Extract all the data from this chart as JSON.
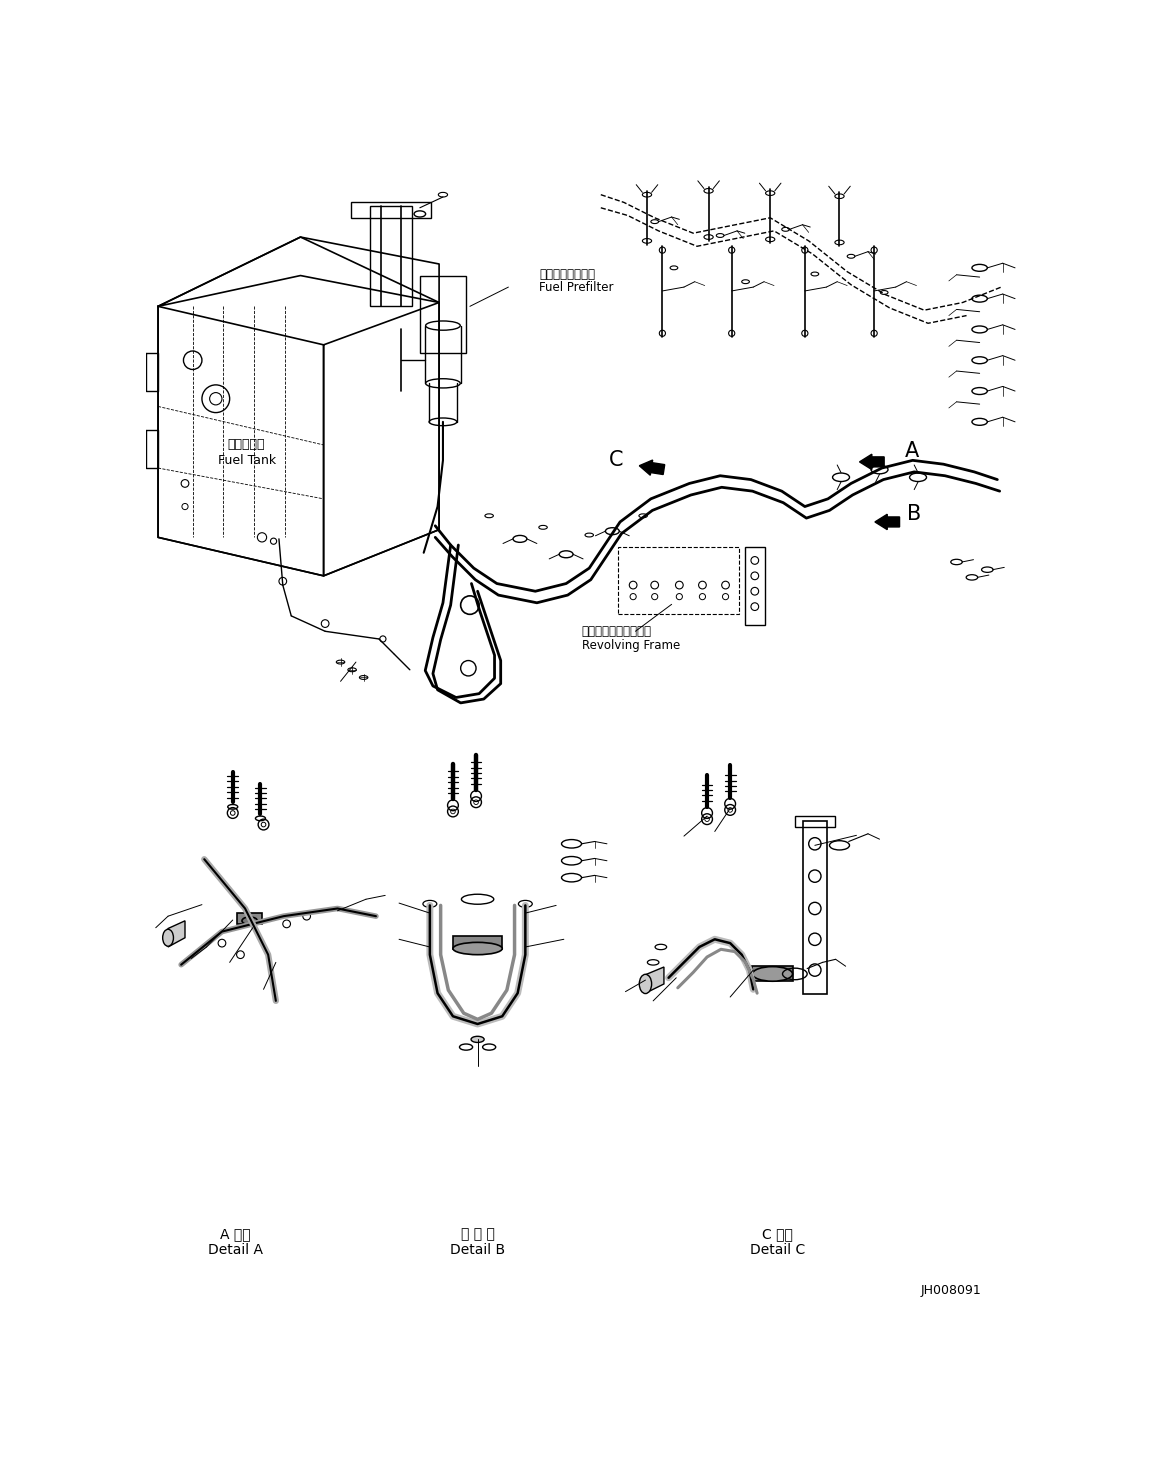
{
  "background_color": "#ffffff",
  "line_color": "#000000",
  "labels": {
    "fuel_tank_jp": "燃料タンク",
    "fuel_tank_en": "Fuel Tank",
    "fuel_prefilter_jp": "燃料プレフィルタ",
    "fuel_prefilter_en": "Fuel Prefilter",
    "revolving_frame_jp": "レボルビングフレーム",
    "revolving_frame_en": "Revolving Frame",
    "detail_a_jp": "A 詳細",
    "detail_a_en": "Detail A",
    "detail_b_jp": "日 詳 細",
    "detail_b_en": "Detail B",
    "detail_c_jp": "C 詳細",
    "detail_c_en": "Detail C",
    "label_A": "A",
    "label_B": "B",
    "label_C": "C",
    "doc_number": "JH008091"
  }
}
